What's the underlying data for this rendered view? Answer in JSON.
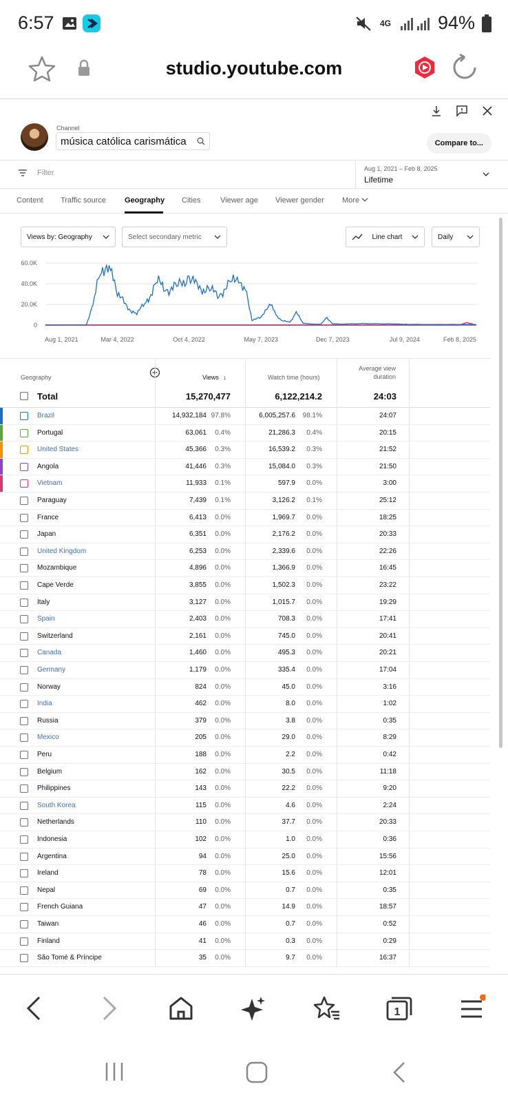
{
  "status": {
    "time": "6:57",
    "network": "4G",
    "battery": "94%"
  },
  "browser": {
    "url": "studio.youtube.com"
  },
  "channel": {
    "label": "Channel",
    "name": "música católica carismática",
    "compare": "Compare to..."
  },
  "filter": {
    "placeholder": "Filter",
    "date_range": "Aug 1, 2021 – Feb 8, 2025",
    "date_value": "Lifetime"
  },
  "tabs": [
    "Content",
    "Traffic source",
    "Geography",
    "Cities",
    "Viewer age",
    "Viewer gender",
    "More"
  ],
  "controls": {
    "views_by": "Views by: Geography",
    "secondary": "Select secondary metric",
    "chart_type": "Line chart",
    "granularity": "Daily"
  },
  "chart_data": {
    "type": "line",
    "x_ticks": [
      "Aug 1, 2021",
      "Mar 4, 2022",
      "Oct 4, 2022",
      "May 7, 2023",
      "Dec 7, 2023",
      "Jul 9, 2024",
      "Feb 8, 2025"
    ],
    "y_ticks": [
      "60.0K",
      "40.0K",
      "20.0K",
      "0"
    ],
    "ylim": [
      0,
      60000
    ],
    "series": [
      {
        "name": "Brazil",
        "color": "#1c6fc7",
        "x": [
          "2021-08-01",
          "2021-12-01",
          "2021-12-25",
          "2022-01-15",
          "2022-02-15",
          "2022-03-04",
          "2022-04-01",
          "2022-05-01",
          "2022-06-01",
          "2022-07-01",
          "2022-08-01",
          "2022-09-01",
          "2022-10-04",
          "2022-11-01",
          "2022-12-01",
          "2023-01-01",
          "2023-02-01",
          "2023-03-01",
          "2023-03-25",
          "2023-04-10",
          "2023-05-07",
          "2023-06-01",
          "2023-06-20",
          "2023-07-10",
          "2023-08-01",
          "2023-08-20",
          "2023-09-10",
          "2023-10-01",
          "2023-11-01",
          "2023-11-20",
          "2023-12-07",
          "2024-01-01",
          "2024-03-01",
          "2024-06-01",
          "2024-07-09",
          "2024-10-01",
          "2025-01-01",
          "2025-02-08"
        ],
        "y": [
          0,
          0,
          25000,
          57000,
          48000,
          32000,
          17000,
          11000,
          24000,
          42000,
          34000,
          38000,
          47000,
          36000,
          34000,
          30000,
          38000,
          48000,
          28000,
          5000,
          7000,
          22000,
          10000,
          4000,
          3000,
          12000,
          2000,
          1000,
          900,
          7000,
          1200,
          1000,
          1500,
          1200,
          800,
          600,
          700,
          500
        ]
      },
      {
        "name": "Portugal",
        "color": "#58a834",
        "x": [
          "2021-08-01",
          "2025-02-08"
        ],
        "y": [
          100,
          100
        ]
      },
      {
        "name": "United States",
        "color": "#f29300",
        "x": [
          "2021-08-01",
          "2025-02-08"
        ],
        "y": [
          100,
          100
        ]
      },
      {
        "name": "Angola",
        "color": "#8e44c7",
        "x": [
          "2021-08-01",
          "2025-02-08"
        ],
        "y": [
          150,
          150
        ]
      },
      {
        "name": "Vietnam",
        "color": "#e0386c",
        "x": [
          "2021-08-01",
          "2024-12-20",
          "2025-01-10",
          "2025-02-08"
        ],
        "y": [
          0,
          0,
          2500,
          0
        ]
      }
    ]
  },
  "table": {
    "headers": {
      "geo": "Geography",
      "views": "Views",
      "watch": "Watch time (hours)",
      "avg": "Average view duration"
    },
    "total": {
      "label": "Total",
      "views": "15,270,477",
      "watch": "6,122,214.2",
      "avg": "24:03"
    },
    "rows": [
      {
        "c": "Brazil",
        "link": true,
        "v": "14,932,184",
        "vp": "97.8%",
        "w": "6,005,257.6",
        "wp": "98.1%",
        "a": "24:07",
        "color": "#1c6fc7"
      },
      {
        "c": "Portugal",
        "link": false,
        "v": "63,061",
        "vp": "0.4%",
        "w": "21,286.3",
        "wp": "0.4%",
        "a": "20:15",
        "color": "#58a834"
      },
      {
        "c": "United States",
        "link": true,
        "v": "45,366",
        "vp": "0.3%",
        "w": "16,539.2",
        "wp": "0.3%",
        "a": "21:52",
        "color": "#f29300"
      },
      {
        "c": "Angola",
        "link": false,
        "v": "41,446",
        "vp": "0.3%",
        "w": "15,084.0",
        "wp": "0.3%",
        "a": "21:50",
        "color": "#8e44c7"
      },
      {
        "c": "Vietnam",
        "link": true,
        "v": "11,933",
        "vp": "0.1%",
        "w": "597.9",
        "wp": "0.0%",
        "a": "3:00",
        "color": "#e0386c"
      },
      {
        "c": "Paraguay",
        "link": false,
        "v": "7,439",
        "vp": "0.1%",
        "w": "3,126.2",
        "wp": "0.1%",
        "a": "25:12"
      },
      {
        "c": "France",
        "link": false,
        "v": "6,413",
        "vp": "0.0%",
        "w": "1,969.7",
        "wp": "0.0%",
        "a": "18:25"
      },
      {
        "c": "Japan",
        "link": false,
        "v": "6,351",
        "vp": "0.0%",
        "w": "2,176.2",
        "wp": "0.0%",
        "a": "20:33"
      },
      {
        "c": "United Kingdom",
        "link": true,
        "v": "6,253",
        "vp": "0.0%",
        "w": "2,339.6",
        "wp": "0.0%",
        "a": "22:26"
      },
      {
        "c": "Mozambique",
        "link": false,
        "v": "4,896",
        "vp": "0.0%",
        "w": "1,366.9",
        "wp": "0.0%",
        "a": "16:45"
      },
      {
        "c": "Cape Verde",
        "link": false,
        "v": "3,855",
        "vp": "0.0%",
        "w": "1,502.3",
        "wp": "0.0%",
        "a": "23:22"
      },
      {
        "c": "Italy",
        "link": false,
        "v": "3,127",
        "vp": "0.0%",
        "w": "1,015.7",
        "wp": "0.0%",
        "a": "19:29"
      },
      {
        "c": "Spain",
        "link": true,
        "v": "2,403",
        "vp": "0.0%",
        "w": "708.3",
        "wp": "0.0%",
        "a": "17:41"
      },
      {
        "c": "Switzerland",
        "link": false,
        "v": "2,161",
        "vp": "0.0%",
        "w": "745.0",
        "wp": "0.0%",
        "a": "20:41"
      },
      {
        "c": "Canada",
        "link": true,
        "v": "1,460",
        "vp": "0.0%",
        "w": "495.3",
        "wp": "0.0%",
        "a": "20:21"
      },
      {
        "c": "Germany",
        "link": true,
        "v": "1,179",
        "vp": "0.0%",
        "w": "335.4",
        "wp": "0.0%",
        "a": "17:04"
      },
      {
        "c": "Norway",
        "link": false,
        "v": "824",
        "vp": "0.0%",
        "w": "45.0",
        "wp": "0.0%",
        "a": "3:16"
      },
      {
        "c": "India",
        "link": true,
        "v": "462",
        "vp": "0.0%",
        "w": "8.0",
        "wp": "0.0%",
        "a": "1:02"
      },
      {
        "c": "Russia",
        "link": false,
        "v": "379",
        "vp": "0.0%",
        "w": "3.8",
        "wp": "0.0%",
        "a": "0:35"
      },
      {
        "c": "Mexico",
        "link": true,
        "v": "205",
        "vp": "0.0%",
        "w": "29.0",
        "wp": "0.0%",
        "a": "8:29"
      },
      {
        "c": "Peru",
        "link": false,
        "v": "188",
        "vp": "0.0%",
        "w": "2.2",
        "wp": "0.0%",
        "a": "0:42"
      },
      {
        "c": "Belgium",
        "link": false,
        "v": "162",
        "vp": "0.0%",
        "w": "30.5",
        "wp": "0.0%",
        "a": "11:18"
      },
      {
        "c": "Philippines",
        "link": false,
        "v": "143",
        "vp": "0.0%",
        "w": "22.2",
        "wp": "0.0%",
        "a": "9:20"
      },
      {
        "c": "South Korea",
        "link": true,
        "v": "115",
        "vp": "0.0%",
        "w": "4.6",
        "wp": "0.0%",
        "a": "2:24"
      },
      {
        "c": "Netherlands",
        "link": false,
        "v": "110",
        "vp": "0.0%",
        "w": "37.7",
        "wp": "0.0%",
        "a": "20:33"
      },
      {
        "c": "Indonesia",
        "link": false,
        "v": "102",
        "vp": "0.0%",
        "w": "1.0",
        "wp": "0.0%",
        "a": "0:36"
      },
      {
        "c": "Argentina",
        "link": false,
        "v": "94",
        "vp": "0.0%",
        "w": "25.0",
        "wp": "0.0%",
        "a": "15:56"
      },
      {
        "c": "Ireland",
        "link": false,
        "v": "78",
        "vp": "0.0%",
        "w": "15.6",
        "wp": "0.0%",
        "a": "12:01"
      },
      {
        "c": "Nepal",
        "link": false,
        "v": "69",
        "vp": "0.0%",
        "w": "0.7",
        "wp": "0.0%",
        "a": "0:35"
      },
      {
        "c": "French Guiana",
        "link": false,
        "v": "47",
        "vp": "0.0%",
        "w": "14.9",
        "wp": "0.0%",
        "a": "18:57"
      },
      {
        "c": "Taiwan",
        "link": false,
        "v": "46",
        "vp": "0.0%",
        "w": "0.7",
        "wp": "0.0%",
        "a": "0:52"
      },
      {
        "c": "Finland",
        "link": false,
        "v": "41",
        "vp": "0.0%",
        "w": "0.3",
        "wp": "0.0%",
        "a": "0:29"
      },
      {
        "c": "São Tomé & Príncipe",
        "link": false,
        "v": "35",
        "vp": "0.0%",
        "w": "9.7",
        "wp": "0.0%",
        "a": "16:37"
      }
    ]
  },
  "bottom_nav": {
    "tabs_count": "1"
  },
  "icons": {
    "status": [
      "gallery-icon",
      "app-icon",
      "mute-icon",
      "signal-icon",
      "battery-icon"
    ],
    "browser": [
      "bookmark-star-icon",
      "lock-icon",
      "youtube-studio-icon",
      "reload-icon"
    ],
    "header": [
      "download-icon",
      "feedback-icon",
      "close-icon"
    ],
    "nav": [
      "back-icon",
      "forward-icon",
      "home-icon",
      "ai-sparkle-icon",
      "bookmarks-icon",
      "tabs-icon",
      "menu-icon"
    ]
  }
}
